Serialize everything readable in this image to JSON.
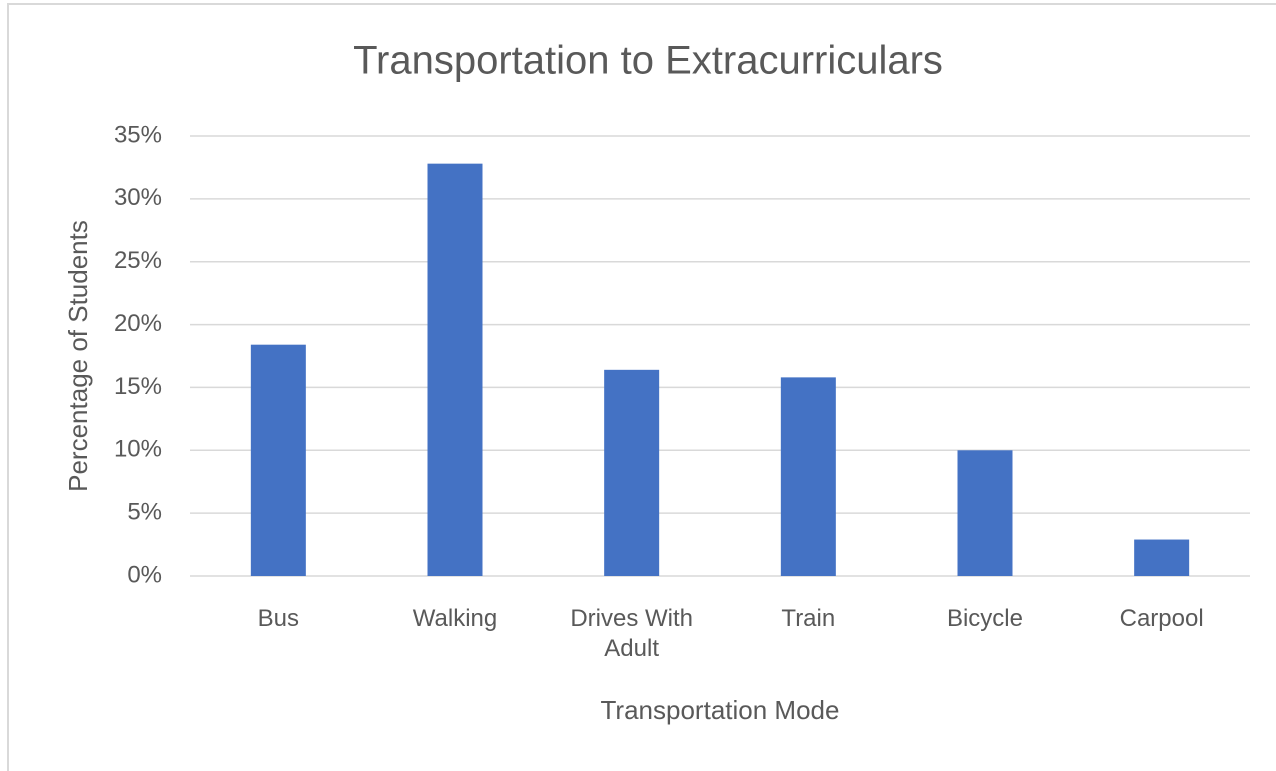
{
  "chart_data": {
    "type": "bar",
    "title": "Transportation to Extracurriculars",
    "x_label": "Transportation Mode",
    "y_label": "Percentage of Students",
    "categories": [
      "Bus",
      "Walking",
      "Drives With Adult",
      "Train",
      "Bicycle",
      "Carpool"
    ],
    "values": [
      18.4,
      32.8,
      16.4,
      15.8,
      10.0,
      2.9
    ],
    "color": "#4472c4",
    "ylim": [
      0,
      35
    ],
    "yticks": [
      {
        "value": 0,
        "label": "0%"
      },
      {
        "value": 5,
        "label": "5%"
      },
      {
        "value": 10,
        "label": "10%"
      },
      {
        "value": 15,
        "label": "15%"
      },
      {
        "value": 20,
        "label": "20%"
      },
      {
        "value": 25,
        "label": "25%"
      },
      {
        "value": 30,
        "label": "30%"
      },
      {
        "value": 35,
        "label": "35%"
      }
    ],
    "grid": true
  }
}
